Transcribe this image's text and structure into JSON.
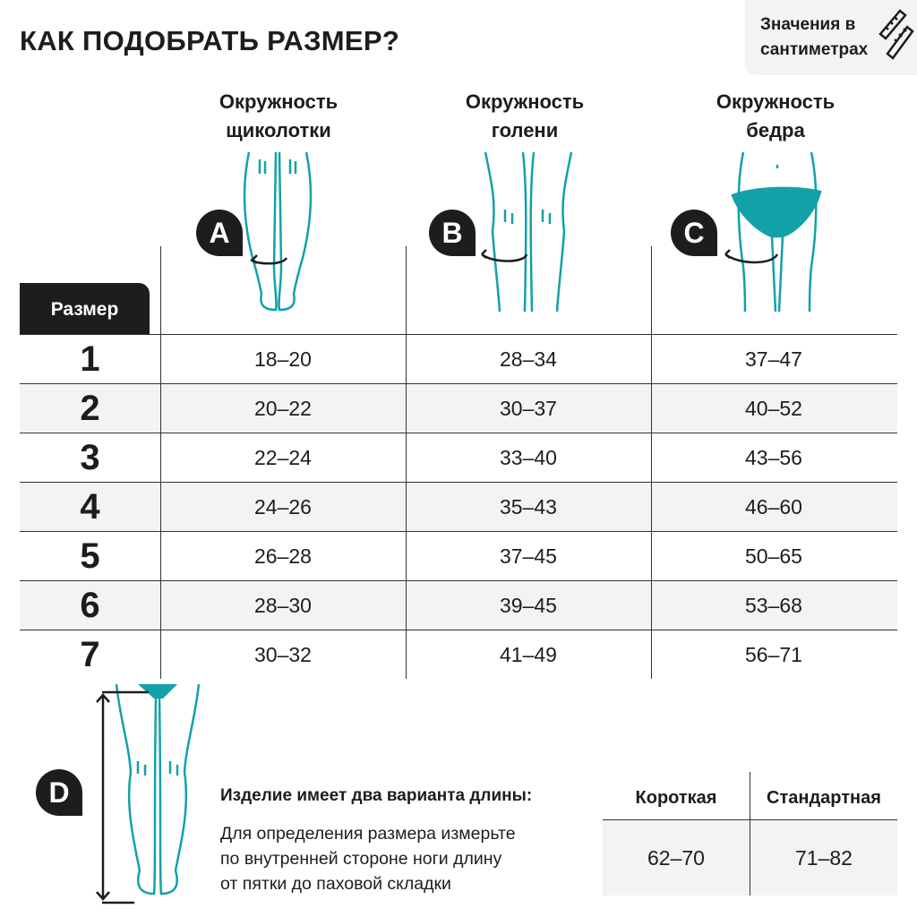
{
  "title": "КАК ПОДОБРАТЬ РАЗМЕР?",
  "units_note": {
    "line1": "Значения в",
    "line2": "сантиметрах",
    "icon": "ruler-icon"
  },
  "columns": [
    {
      "line1": "Окружность",
      "line2": "щиколотки",
      "badge": "A"
    },
    {
      "line1": "Окружность",
      "line2": "голени",
      "badge": "B"
    },
    {
      "line1": "Окружность",
      "line2": "бедра",
      "badge": "C"
    }
  ],
  "size_header": "Размер",
  "rows": [
    {
      "size": "1",
      "a": "18–20",
      "b": "28–34",
      "c": "37–47"
    },
    {
      "size": "2",
      "a": "20–22",
      "b": "30–37",
      "c": "40–52"
    },
    {
      "size": "3",
      "a": "22–24",
      "b": "33–40",
      "c": "43–56"
    },
    {
      "size": "4",
      "a": "24–26",
      "b": "35–43",
      "c": "46–60"
    },
    {
      "size": "5",
      "a": "26–28",
      "b": "37–45",
      "c": "50–65"
    },
    {
      "size": "6",
      "a": "28–30",
      "b": "39–45",
      "c": "53–68"
    },
    {
      "size": "7",
      "a": "30–32",
      "b": "41–49",
      "c": "56–71"
    }
  ],
  "length": {
    "badge": "D",
    "heading": "Изделие имеет два варианта длины:",
    "lines": [
      "Для определения размера измерьте",
      "по внутренней стороне ноги длину",
      "от пятки до паховой складки"
    ],
    "headers": [
      "Короткая",
      "Стандартная"
    ],
    "values": [
      "62–70",
      "71–82"
    ]
  },
  "colors": {
    "accent": "#13a1a8",
    "dark": "#1d1d1d",
    "row_alt": "#f3f3f3"
  }
}
